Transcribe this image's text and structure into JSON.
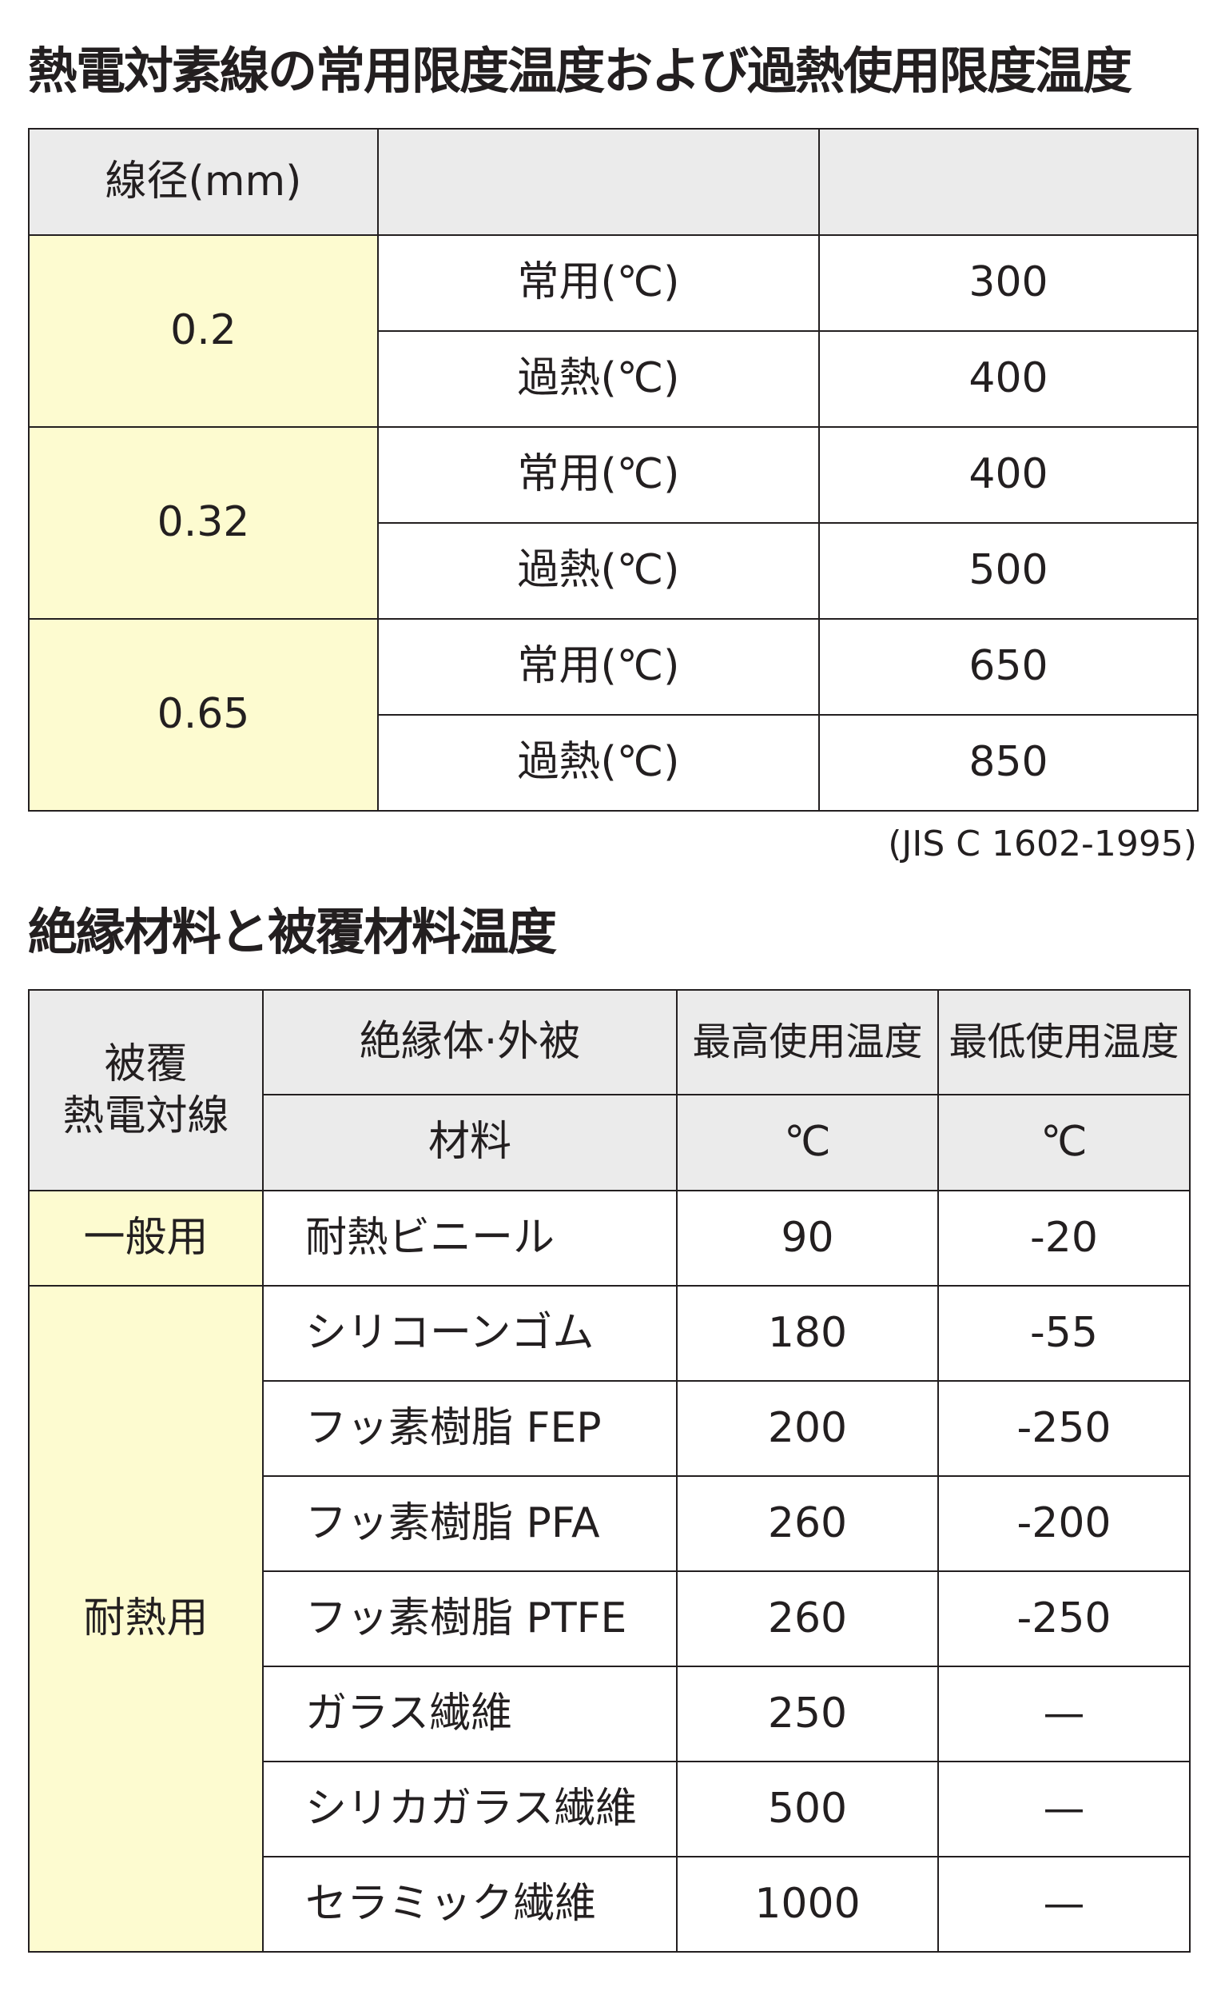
{
  "section1": {
    "title": "熱電対素線の常用限度温度および過熱使用限度温度",
    "header": {
      "diameter": "線径(mm)",
      "col2": "",
      "col3": ""
    },
    "rows": [
      {
        "diameter": "0.2",
        "normal_label": "常用(℃)",
        "normal": "300",
        "overheat_label": "過熱(℃)",
        "overheat": "400"
      },
      {
        "diameter": "0.32",
        "normal_label": "常用(℃)",
        "normal": "400",
        "overheat_label": "過熱(℃)",
        "overheat": "500"
      },
      {
        "diameter": "0.65",
        "normal_label": "常用(℃)",
        "normal": "650",
        "overheat_label": "過熱(℃)",
        "overheat": "850"
      }
    ],
    "note": "(JIS C 1602-1995)"
  },
  "section2": {
    "title": "絶縁材料と被覆材料温度",
    "header": {
      "type": "被覆\n熱電対線",
      "material_top": "絶縁体·外被",
      "material_bottom": "材料",
      "max": "最高使用温度",
      "min": "最低使用温度",
      "max_unit": "℃",
      "min_unit": "℃"
    },
    "groups": [
      {
        "label": "一般用",
        "items": [
          {
            "material": "耐熱ビニール",
            "max": "90",
            "min": "-20"
          }
        ]
      },
      {
        "label": "耐熱用",
        "items": [
          {
            "material": "シリコーンゴム",
            "max": "180",
            "min": "-55"
          },
          {
            "material": "フッ素樹脂 FEP",
            "max": "200",
            "min": "-250"
          },
          {
            "material": "フッ素樹脂 PFA",
            "max": "260",
            "min": "-200"
          },
          {
            "material": "フッ素樹脂 PTFE",
            "max": "260",
            "min": "-250"
          },
          {
            "material": "ガラス繊維",
            "max": "250",
            "min": "—"
          },
          {
            "material": "シリカガラス繊維",
            "max": "500",
            "min": "—"
          },
          {
            "material": "セラミック繊維",
            "max": "1000",
            "min": "—"
          }
        ]
      }
    ]
  },
  "colors": {
    "header_bg": "#ebebeb",
    "label_bg": "#fdfbd0",
    "border": "#231f20"
  }
}
